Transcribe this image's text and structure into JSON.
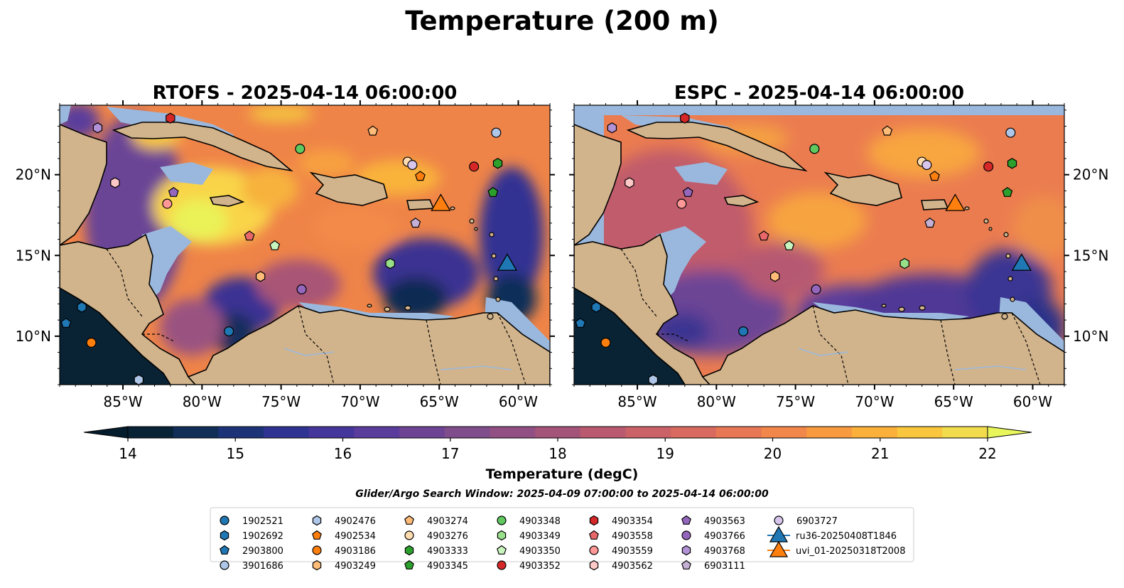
{
  "figure": {
    "title": "Temperature (200 m)",
    "search_window": "Glider/Argo Search Window: 2025-04-09 07:00:00 to 2025-04-14 06:00:00"
  },
  "chart_data": [
    {
      "type": "heatmap",
      "title": "RTOFS - 2025-04-14 06:00:00",
      "model": "RTOFS",
      "xlim": [
        -89,
        -58
      ],
      "ylim": [
        7,
        24.3
      ],
      "xticks": [
        -85,
        -80,
        -75,
        -70,
        -65,
        -60
      ],
      "xtick_labels": [
        "85°W",
        "80°W",
        "75°W",
        "70°W",
        "65°W",
        "60°W"
      ],
      "yticks": [
        10,
        15,
        20
      ],
      "ytick_labels": [
        "10°N",
        "15°N",
        "20°N"
      ],
      "ytick_side": "left"
    },
    {
      "type": "heatmap",
      "title": "ESPC - 2025-04-14 06:00:00",
      "model": "ESPC",
      "xlim": [
        -89,
        -58
      ],
      "ylim": [
        7,
        24.3
      ],
      "xticks": [
        -85,
        -80,
        -75,
        -70,
        -65,
        -60
      ],
      "xtick_labels": [
        "85°W",
        "80°W",
        "75°W",
        "70°W",
        "65°W",
        "60°W"
      ],
      "yticks": [
        10,
        15,
        20
      ],
      "ytick_labels": [
        "10°N",
        "15°N",
        "20°N"
      ],
      "ytick_side": "right"
    }
  ],
  "colorbar": {
    "label": "Temperature (degC)",
    "min": 14,
    "max": 22,
    "step": 0.5,
    "ticks": [
      14,
      15,
      16,
      17,
      18,
      19,
      20,
      21,
      22
    ],
    "colors": [
      "#082236",
      "#102e58",
      "#1d3378",
      "#2f3391",
      "#45369b",
      "#5a3c9c",
      "#6d4494",
      "#7f4c8c",
      "#914f84",
      "#a55479",
      "#b95a70",
      "#ca6268",
      "#d96a5f",
      "#e77755",
      "#f1874a",
      "#f79a40",
      "#fab03a",
      "#f9c63d",
      "#f2dc4e"
    ],
    "under_color": "#041c2c",
    "over_color": "#e8f65c"
  },
  "map_colors": {
    "land": "#d2b48c",
    "shelf": "#9ab8dd",
    "deep_low": "#082236"
  },
  "legend": [
    {
      "label": "1902521",
      "marker": "circle",
      "color": "#1f77b4"
    },
    {
      "label": "1902692",
      "marker": "hexagon",
      "color": "#1f77b4"
    },
    {
      "label": "2903800",
      "marker": "pentagon",
      "color": "#1f77b4"
    },
    {
      "label": "3901686",
      "marker": "circle",
      "color": "#aec7e8"
    },
    {
      "label": "4902476",
      "marker": "hexagon",
      "color": "#aec7e8"
    },
    {
      "label": "4902534",
      "marker": "pentagon",
      "color": "#ff7f0e"
    },
    {
      "label": "4903186",
      "marker": "circle",
      "color": "#ff7f0e"
    },
    {
      "label": "4903249",
      "marker": "hexagon",
      "color": "#ffbb78"
    },
    {
      "label": "4903274",
      "marker": "pentagon",
      "color": "#ffbb78"
    },
    {
      "label": "4903276",
      "marker": "circle",
      "color": "#ffdcb0"
    },
    {
      "label": "4903333",
      "marker": "hexagon",
      "color": "#2ca02c"
    },
    {
      "label": "4903345",
      "marker": "pentagon",
      "color": "#2ca02c"
    },
    {
      "label": "4903348",
      "marker": "circle",
      "color": "#5fc95f"
    },
    {
      "label": "4903349",
      "marker": "hexagon",
      "color": "#98df8a"
    },
    {
      "label": "4903350",
      "marker": "pentagon",
      "color": "#c8f5be"
    },
    {
      "label": "4903352",
      "marker": "circle",
      "color": "#d62728"
    },
    {
      "label": "4903354",
      "marker": "hexagon",
      "color": "#d62728"
    },
    {
      "label": "4903558",
      "marker": "pentagon",
      "color": "#e8686a"
    },
    {
      "label": "4903559",
      "marker": "circle",
      "color": "#ff9896"
    },
    {
      "label": "4903562",
      "marker": "hexagon",
      "color": "#ffc9c7"
    },
    {
      "label": "4903563",
      "marker": "pentagon",
      "color": "#9467bd"
    },
    {
      "label": "4903766",
      "marker": "circle",
      "color": "#9467bd"
    },
    {
      "label": "4903768",
      "marker": "hexagon",
      "color": "#b292d6"
    },
    {
      "label": "6903111",
      "marker": "pentagon",
      "color": "#c5b0d5"
    },
    {
      "label": "6903727",
      "marker": "circle",
      "color": "#d8c5ec"
    },
    {
      "label": "ru36-20250408T1846",
      "marker": "triangle-line",
      "color": "#1f77b4"
    },
    {
      "label": "uvi_01-20250318T2008",
      "marker": "triangle-line",
      "color": "#ff7f0e"
    }
  ],
  "floats": [
    {
      "id": "1902521",
      "lon": -78.3,
      "lat": 10.3
    },
    {
      "id": "1902692",
      "lon": -87.6,
      "lat": 11.8
    },
    {
      "id": "2903800",
      "lon": -88.6,
      "lat": 10.8
    },
    {
      "id": "3901686",
      "lon": -61.4,
      "lat": 22.6
    },
    {
      "id": "4902476",
      "lon": -84.0,
      "lat": 7.3
    },
    {
      "id": "4902534",
      "lon": -66.2,
      "lat": 19.9
    },
    {
      "id": "4903186",
      "lon": -87.0,
      "lat": 9.6
    },
    {
      "id": "4903249",
      "lon": -76.3,
      "lat": 13.7
    },
    {
      "id": "4903274",
      "lon": -69.2,
      "lat": 22.7
    },
    {
      "id": "4903276",
      "lon": -67.0,
      "lat": 20.8
    },
    {
      "id": "4903333",
      "lon": -61.3,
      "lat": 20.7
    },
    {
      "id": "4903345",
      "lon": -61.6,
      "lat": 18.9
    },
    {
      "id": "4903348",
      "lon": -73.8,
      "lat": 21.6
    },
    {
      "id": "4903349",
      "lon": -68.1,
      "lat": 14.5
    },
    {
      "id": "4903350",
      "lon": -75.4,
      "lat": 15.6
    },
    {
      "id": "4903352",
      "lon": -62.8,
      "lat": 20.5
    },
    {
      "id": "4903354",
      "lon": -82.0,
      "lat": 23.5
    },
    {
      "id": "4903558",
      "lon": -77.0,
      "lat": 16.2
    },
    {
      "id": "4903559",
      "lon": -82.2,
      "lat": 18.2
    },
    {
      "id": "4903562",
      "lon": -85.5,
      "lat": 19.5
    },
    {
      "id": "4903563",
      "lon": -81.8,
      "lat": 18.9
    },
    {
      "id": "4903766",
      "lon": -73.7,
      "lat": 12.9
    },
    {
      "id": "4903768",
      "lon": -86.6,
      "lat": 22.9
    },
    {
      "id": "6903111",
      "lon": -66.5,
      "lat": 17.0
    },
    {
      "id": "6903727",
      "lon": -66.7,
      "lat": 20.6
    }
  ],
  "gliders": [
    {
      "id": "ru36-20250408T1846",
      "lon": -60.7,
      "lat": 14.5
    },
    {
      "id": "uvi_01-20250318T2008",
      "lon": -64.9,
      "lat": 18.2
    }
  ]
}
